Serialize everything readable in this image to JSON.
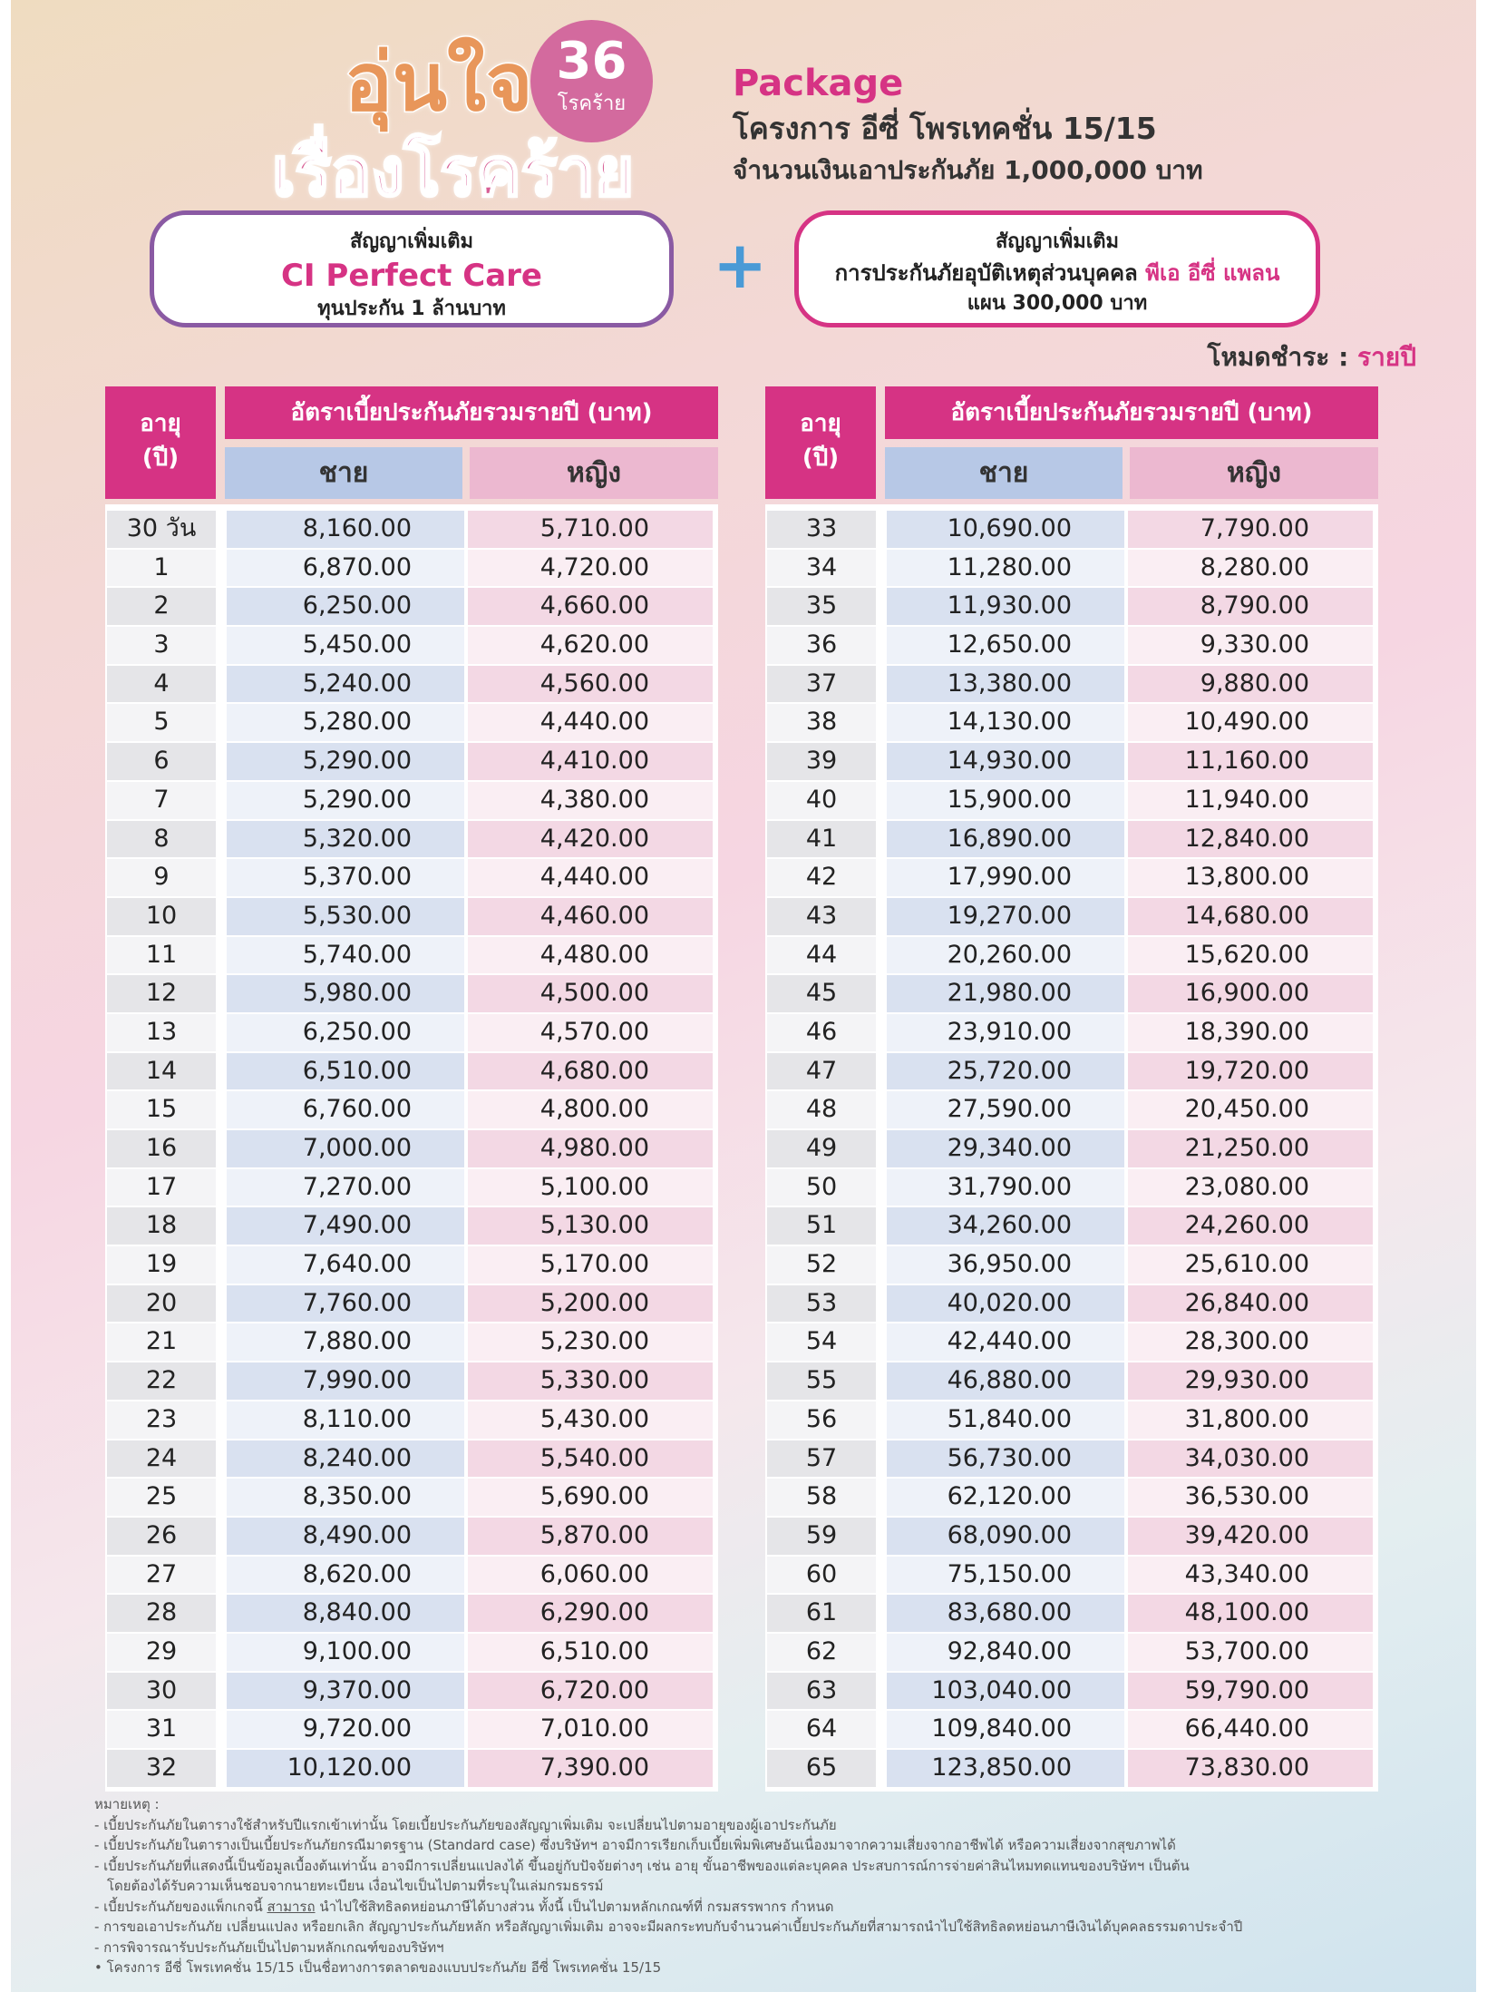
{
  "logo": {
    "line1": "อุ่นใจ",
    "line2": "เรื่องโรคร้าย",
    "badge_number": "36",
    "badge_text": "โรคร้าย"
  },
  "package": {
    "label": "Package",
    "project": "โครงการ อีซี่ โพรเทคชั่น 15/15",
    "sum_assured": "จำนวนเงินเอาประกันภัย 1,000,000 บาท"
  },
  "rider1": {
    "top": "สัญญาเพิ่มเติม",
    "name": "CI Perfect Care",
    "sub": "ทุนประกัน 1 ล้านบาท"
  },
  "plus": "+",
  "rider2": {
    "top": "สัญญาเพิ่มเติม",
    "line_prefix": "การประกันภัยอุบัติเหตุส่วนบุคคล",
    "line_highlight": "พีเอ อีซี่ แพลน",
    "sub": "แผน 300,000 บาท"
  },
  "payment_mode": {
    "label": "โหมดชำระ : ",
    "value": "รายปี"
  },
  "table_headers": {
    "age": "อายุ",
    "age_unit": "(ปี)",
    "premium": "อัตราเบี้ยประกันภัยรวมรายปี (บาท)",
    "male": "ชาย",
    "female": "หญิง"
  },
  "table_left": [
    [
      "30 วัน",
      "8,160.00",
      "5,710.00"
    ],
    [
      "1",
      "6,870.00",
      "4,720.00"
    ],
    [
      "2",
      "6,250.00",
      "4,660.00"
    ],
    [
      "3",
      "5,450.00",
      "4,620.00"
    ],
    [
      "4",
      "5,240.00",
      "4,560.00"
    ],
    [
      "5",
      "5,280.00",
      "4,440.00"
    ],
    [
      "6",
      "5,290.00",
      "4,410.00"
    ],
    [
      "7",
      "5,290.00",
      "4,380.00"
    ],
    [
      "8",
      "5,320.00",
      "4,420.00"
    ],
    [
      "9",
      "5,370.00",
      "4,440.00"
    ],
    [
      "10",
      "5,530.00",
      "4,460.00"
    ],
    [
      "11",
      "5,740.00",
      "4,480.00"
    ],
    [
      "12",
      "5,980.00",
      "4,500.00"
    ],
    [
      "13",
      "6,250.00",
      "4,570.00"
    ],
    [
      "14",
      "6,510.00",
      "4,680.00"
    ],
    [
      "15",
      "6,760.00",
      "4,800.00"
    ],
    [
      "16",
      "7,000.00",
      "4,980.00"
    ],
    [
      "17",
      "7,270.00",
      "5,100.00"
    ],
    [
      "18",
      "7,490.00",
      "5,130.00"
    ],
    [
      "19",
      "7,640.00",
      "5,170.00"
    ],
    [
      "20",
      "7,760.00",
      "5,200.00"
    ],
    [
      "21",
      "7,880.00",
      "5,230.00"
    ],
    [
      "22",
      "7,990.00",
      "5,330.00"
    ],
    [
      "23",
      "8,110.00",
      "5,430.00"
    ],
    [
      "24",
      "8,240.00",
      "5,540.00"
    ],
    [
      "25",
      "8,350.00",
      "5,690.00"
    ],
    [
      "26",
      "8,490.00",
      "5,870.00"
    ],
    [
      "27",
      "8,620.00",
      "6,060.00"
    ],
    [
      "28",
      "8,840.00",
      "6,290.00"
    ],
    [
      "29",
      "9,100.00",
      "6,510.00"
    ],
    [
      "30",
      "9,370.00",
      "6,720.00"
    ],
    [
      "31",
      "9,720.00",
      "7,010.00"
    ],
    [
      "32",
      "10,120.00",
      "7,390.00"
    ]
  ],
  "table_right": [
    [
      "33",
      "10,690.00",
      "7,790.00"
    ],
    [
      "34",
      "11,280.00",
      "8,280.00"
    ],
    [
      "35",
      "11,930.00",
      "8,790.00"
    ],
    [
      "36",
      "12,650.00",
      "9,330.00"
    ],
    [
      "37",
      "13,380.00",
      "9,880.00"
    ],
    [
      "38",
      "14,130.00",
      "10,490.00"
    ],
    [
      "39",
      "14,930.00",
      "11,160.00"
    ],
    [
      "40",
      "15,900.00",
      "11,940.00"
    ],
    [
      "41",
      "16,890.00",
      "12,840.00"
    ],
    [
      "42",
      "17,990.00",
      "13,800.00"
    ],
    [
      "43",
      "19,270.00",
      "14,680.00"
    ],
    [
      "44",
      "20,260.00",
      "15,620.00"
    ],
    [
      "45",
      "21,980.00",
      "16,900.00"
    ],
    [
      "46",
      "23,910.00",
      "18,390.00"
    ],
    [
      "47",
      "25,720.00",
      "19,720.00"
    ],
    [
      "48",
      "27,590.00",
      "20,450.00"
    ],
    [
      "49",
      "29,340.00",
      "21,250.00"
    ],
    [
      "50",
      "31,790.00",
      "23,080.00"
    ],
    [
      "51",
      "34,260.00",
      "24,260.00"
    ],
    [
      "52",
      "36,950.00",
      "25,610.00"
    ],
    [
      "53",
      "40,020.00",
      "26,840.00"
    ],
    [
      "54",
      "42,440.00",
      "28,300.00"
    ],
    [
      "55",
      "46,880.00",
      "29,930.00"
    ],
    [
      "56",
      "51,840.00",
      "31,800.00"
    ],
    [
      "57",
      "56,730.00",
      "34,030.00"
    ],
    [
      "58",
      "62,120.00",
      "36,530.00"
    ],
    [
      "59",
      "68,090.00",
      "39,420.00"
    ],
    [
      "60",
      "75,150.00",
      "43,340.00"
    ],
    [
      "61",
      "83,680.00",
      "48,100.00"
    ],
    [
      "62",
      "92,840.00",
      "53,700.00"
    ],
    [
      "63",
      "103,040.00",
      "59,790.00"
    ],
    [
      "64",
      "109,840.00",
      "66,440.00"
    ],
    [
      "65",
      "123,850.00",
      "73,830.00"
    ]
  ],
  "notes": {
    "title": "หมายเหตุ :",
    "n1": "- เบี้ยประกันภัยในตารางใช้สำหรับปีแรกเข้าเท่านั้น โดยเบี้ยประกันภัยของสัญญาเพิ่มเติม จะเปลี่ยนไปตามอายุของผู้เอาประกันภัย",
    "n2": "- เบี้ยประกันภัยในตารางเป็นเบี้ยประกันภัยกรณีมาตรฐาน (Standard case) ซึ่งบริษัทฯ อาจมีการเรียกเก็บเบี้ยเพิ่มพิเศษอันเนื่องมาจากความเสี่ยงจากอาชีพได้ หรือความเสี่ยงจากสุขภาพได้",
    "n3": "- เบี้ยประกันภัยที่แสดงนี้เป็นข้อมูลเบื้องต้นเท่านั้น อาจมีการเปลี่ยนแปลงได้ ขึ้นอยู่กับปัจจัยต่างๆ เช่น อายุ ขั้นอาชีพของแต่ละบุคคล ประสบการณ์การจ่ายค่าสินไหมทดแทนของบริษัทฯ เป็นต้น",
    "n3b": "โดยต้องได้รับความเห็นชอบจากนายทะเบียน เงื่อนไขเป็นไปตามที่ระบุในเล่มกรมธรรม์",
    "n4a": "- เบี้ยประกันภัยของแพ็กเกจนี้ ",
    "n4u": "สามารถ",
    "n4b": " นำไปใช้สิทธิลดหย่อนภาษีได้บางส่วน ทั้งนี้ เป็นไปตามหลักเกณฑ์ที่ กรมสรรพากร กำหนด",
    "n5": "- การขอเอาประกันภัย เปลี่ยนแปลง หรือยกเลิก สัญญาประกันภัยหลัก หรือสัญญาเพิ่มเติม อาจจะมีผลกระทบกับจำนวนค่าเบี้ยประกันภัยที่สามารถนำไปใช้สิทธิลดหย่อนภาษีเงินได้บุคคลธรรมดาประจำปี",
    "n6": "- การพิจารณารับประกันภัยเป็นไปตามหลักเกณฑ์ของบริษัทฯ",
    "n7": "• โครงการ อีซี่ โพรเทคชั่น 15/15 เป็นชื่อทางการตลาดของแบบประกันภัย อีซี่ โพรเทคชั่น 15/15"
  }
}
